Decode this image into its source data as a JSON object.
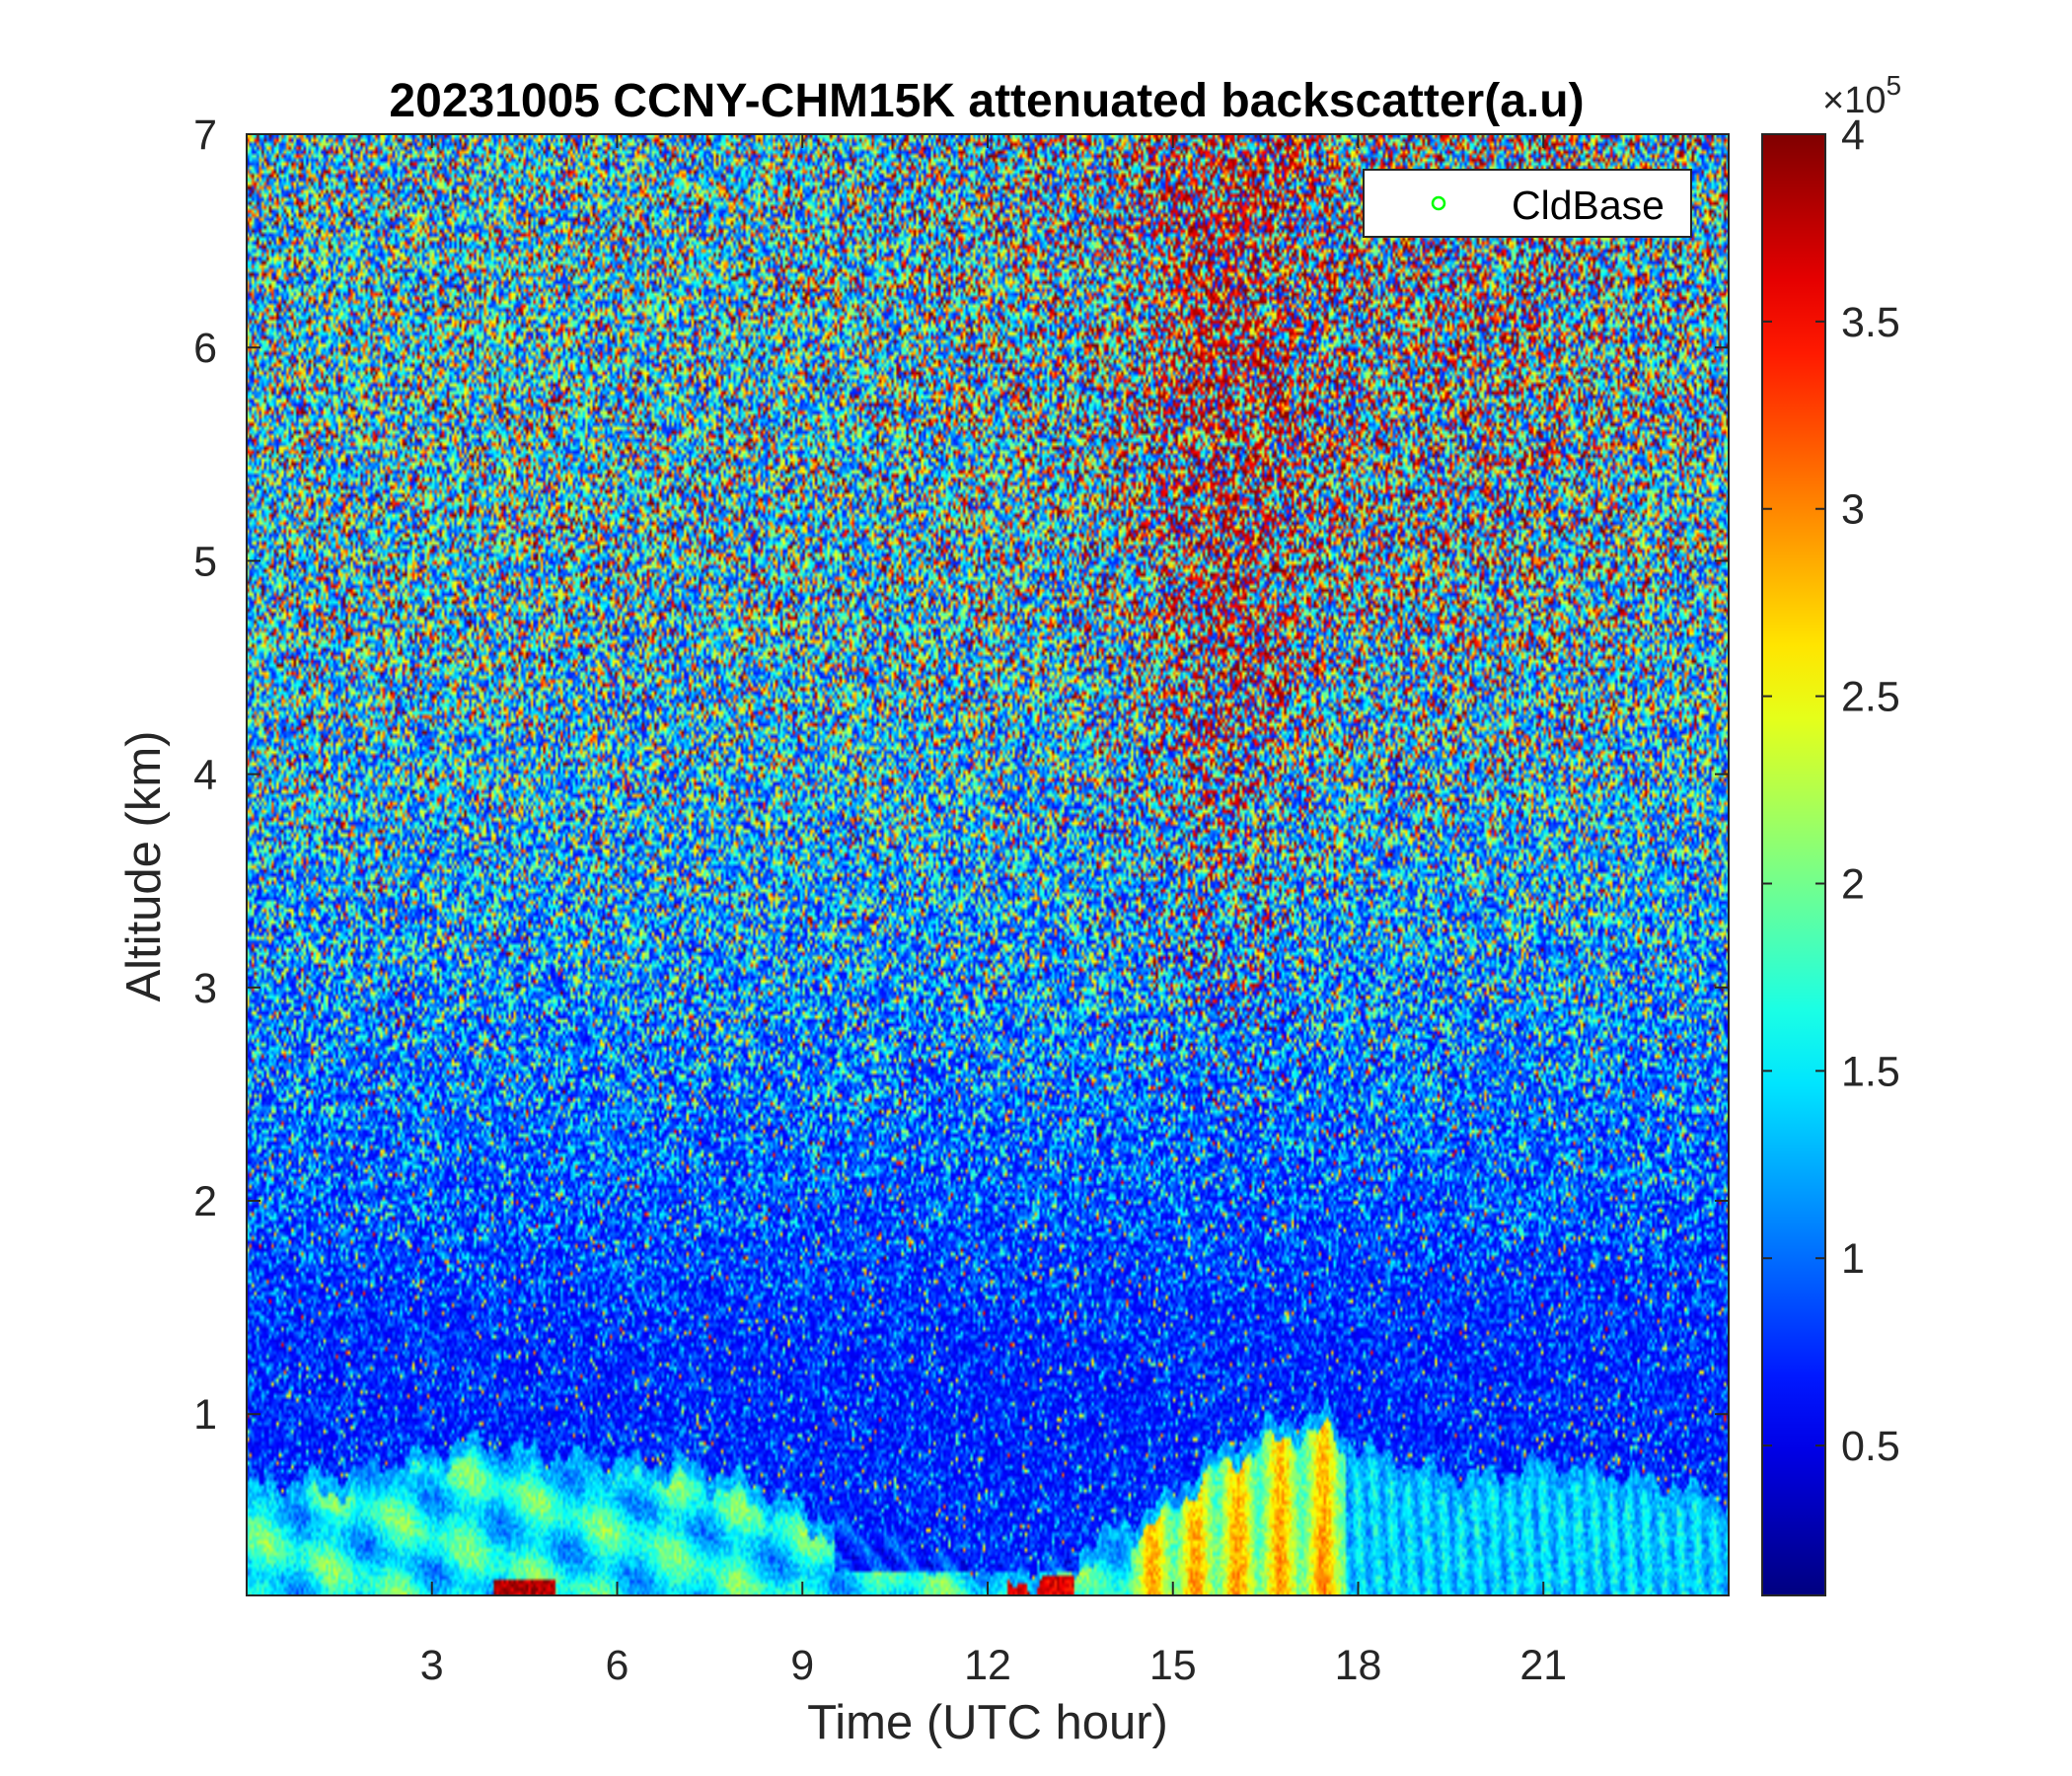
{
  "chart_data": {
    "type": "heatmap",
    "title": "20231005 CCNY-CHM15K attenuated backscatter(a.u)",
    "xlabel": "Time (UTC hour)",
    "ylabel": "Altitude (km)",
    "xlim": [
      0,
      24
    ],
    "ylim": [
      0.15,
      7
    ],
    "xticks": [
      3,
      6,
      9,
      12,
      15,
      18,
      21
    ],
    "yticks": [
      1,
      2,
      3,
      4,
      5,
      6,
      7
    ],
    "colorbar": {
      "colormap": "jet",
      "range": [
        0.1,
        4
      ],
      "ticks": [
        0.5,
        1,
        1.5,
        2,
        2.5,
        3,
        3.5,
        4
      ],
      "tick_labels": [
        "0.5",
        "1",
        "1.5",
        "2",
        "2.5",
        "3",
        "3.5",
        "4"
      ],
      "multiplier_base": "×10",
      "multiplier_exponent": "5"
    },
    "legend": {
      "position": "top-right",
      "entries": [
        {
          "name": "CldBase",
          "marker": "circle",
          "color": "#00ff00"
        }
      ]
    },
    "boundary_layer_top": {
      "x": [
        0,
        1,
        2,
        3,
        3.5,
        4,
        5,
        6,
        7,
        8,
        9,
        10,
        11,
        12,
        13,
        14,
        15,
        15.5,
        16,
        16.5,
        17,
        17.5,
        18,
        18.5,
        19,
        20,
        21,
        22,
        23,
        24
      ],
      "y": [
        0.65,
        0.7,
        0.74,
        0.82,
        0.88,
        0.85,
        0.8,
        0.78,
        0.78,
        0.7,
        0.56,
        0.45,
        0.38,
        0.27,
        0.3,
        0.45,
        0.62,
        0.78,
        0.86,
        0.94,
        0.98,
        1.0,
        0.85,
        0.8,
        0.75,
        0.7,
        0.78,
        0.72,
        0.68,
        0.6
      ]
    }
  }
}
